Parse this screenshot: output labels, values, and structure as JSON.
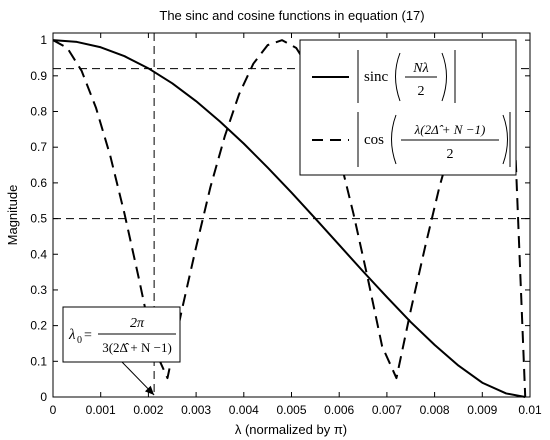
{
  "chart_data": {
    "type": "line",
    "title": "The sinc and cosine functions in equation (17)",
    "xlabel": "λ  (normalized by π)",
    "ylabel": "Magnitude",
    "xlim": [
      0,
      0.01
    ],
    "ylim": [
      0,
      1.02
    ],
    "xticks": [
      0,
      0.001,
      0.002,
      0.003,
      0.004,
      0.005,
      0.006,
      0.007,
      0.008,
      0.009,
      0.01
    ],
    "xtick_labels": [
      "0",
      "0.001",
      "0.002",
      "0.003",
      "0.004",
      "0.005",
      "0.006",
      "0.007",
      "0.008",
      "0.009",
      "0.01"
    ],
    "yticks": [
      0,
      0.1,
      0.2,
      0.3,
      0.4,
      0.5,
      0.6,
      0.7,
      0.8,
      0.9,
      1
    ],
    "ytick_labels": [
      "0",
      "0.1",
      "0.2",
      "0.3",
      "0.4",
      "0.5",
      "0.6",
      "0.7",
      "0.8",
      "0.9",
      "1"
    ],
    "grid": false,
    "legend_position": "top-right",
    "series": [
      {
        "style": "solid",
        "x": [
          0,
          0.0005,
          0.001,
          0.0015,
          0.002,
          0.0025,
          0.003,
          0.0035,
          0.004,
          0.0045,
          0.005,
          0.0055,
          0.006,
          0.0065,
          0.007,
          0.0075,
          0.008,
          0.0085,
          0.009,
          0.0095,
          0.0099
        ],
        "y": [
          1.0,
          0.995,
          0.98,
          0.955,
          0.921,
          0.879,
          0.829,
          0.772,
          0.71,
          0.643,
          0.573,
          0.5,
          0.426,
          0.352,
          0.28,
          0.21,
          0.146,
          0.088,
          0.04,
          0.01,
          0.0
        ]
      },
      {
        "style": "dashed",
        "x": [
          0,
          0.0003,
          0.0006,
          0.0009,
          0.0012,
          0.0015,
          0.0018,
          0.0021,
          0.0024,
          0.0027,
          0.003,
          0.0033,
          0.0036,
          0.0039,
          0.0042,
          0.0045,
          0.0048,
          0.0051,
          0.0054,
          0.0057,
          0.006,
          0.0063,
          0.0066,
          0.0069,
          0.0072,
          0.0075,
          0.0078,
          0.0081,
          0.0084,
          0.0087,
          0.009,
          0.0093,
          0.0096,
          0.0099
        ],
        "y": [
          1.0,
          0.978,
          0.914,
          0.811,
          0.676,
          0.513,
          0.332,
          0.142,
          0.053,
          0.243,
          0.42,
          0.588,
          0.73,
          0.848,
          0.934,
          0.986,
          1.0,
          0.978,
          0.914,
          0.811,
          0.676,
          0.513,
          0.332,
          0.142,
          0.053,
          0.243,
          0.42,
          0.588,
          0.73,
          0.848,
          0.934,
          0.986,
          1.0,
          0.0
        ]
      }
    ],
    "reference_lines": {
      "horizontal": [
        0.92,
        0.5
      ],
      "vertical": [
        0.00212
      ]
    },
    "legend": {
      "sinc_word": "sinc",
      "sinc_num": "Nλ",
      "sinc_den": "2",
      "cos_word": "cos",
      "cos_num": "λ(2Δ̂ + N −1)",
      "cos_den": "2"
    },
    "annotation": {
      "lhs": "λ",
      "lhs_sub": "0",
      "eq": "=",
      "num": "2π",
      "den": "3(2Δ̂ + N −1)",
      "arrow_x": 0.00212
    }
  }
}
